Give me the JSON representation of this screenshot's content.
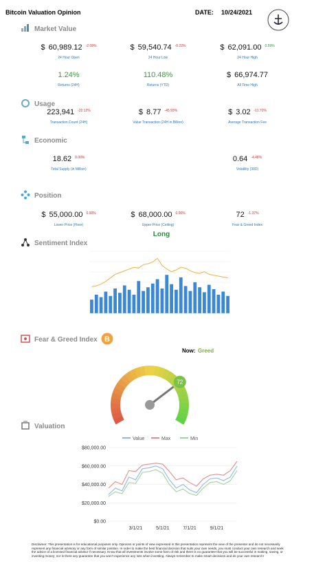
{
  "header": {
    "title": "Bitcoin Valuation Opinion",
    "date_label": "DATE:",
    "date": "10/24/2021"
  },
  "market_value": {
    "title": "Market Value",
    "rows": [
      [
        {
          "currency": "$",
          "value": "60,989.12",
          "change": "-2.09%",
          "label": "24 Hour Open"
        },
        {
          "currency": "$",
          "value": "59,540.74",
          "change": "-0.22%",
          "label": "24 Hour Low"
        },
        {
          "currency": "$",
          "value": "62,091.00",
          "change": "0.59%",
          "label": "24 Hour High"
        }
      ],
      [
        {
          "value": "1.24%",
          "value_color": "#3f9a3f",
          "label": "Returns (24H)"
        },
        {
          "value": "110.48%",
          "value_color": "#3f9a3f",
          "label": "Returns (YTD)"
        },
        {
          "currency": "$",
          "value": "66,974.77",
          "label": "All Time High"
        }
      ]
    ]
  },
  "usage": {
    "title": "Usage",
    "rows": [
      [
        {
          "value": "223,941",
          "change": "-22.12%",
          "label": "Transaction Count (24H)"
        },
        {
          "currency": "$",
          "value": "8.77",
          "change": "-45.93%",
          "label": "Value Transaction (24H in Billion)"
        },
        {
          "currency": "$",
          "value": "3.02",
          "change": "-11.70%",
          "label": "Average Transaction Fee"
        }
      ]
    ]
  },
  "economic": {
    "title": "Economic",
    "rows": [
      [
        {
          "value": "18.62",
          "change": "0.00%",
          "label": "Total Supply (in Million)"
        },
        {
          "value": "0.64",
          "change": "-4.48%",
          "label": "Volatility (30D)"
        }
      ]
    ]
  },
  "position": {
    "title": "Position",
    "rows": [
      [
        {
          "currency": "$",
          "value": "55,000.00",
          "change": "0.00%",
          "label": "Lower Price (Floor)"
        },
        {
          "currency": "$",
          "value": "68,000.00",
          "change": "0.00%",
          "label": "Upper Price (Ceiling)"
        },
        {
          "value": "72",
          "change": "-1.37%",
          "label": "Fear & Greed Index"
        }
      ]
    ],
    "signal": "Long"
  },
  "sentiment": {
    "title": "Sentiment Index"
  },
  "fear_greed": {
    "title": "Fear & Greed Index",
    "now_label": "Now:",
    "status": "Greed"
  },
  "valuation": {
    "title": "Valuation"
  },
  "disclaimer": "Disclaimer: This presentation is for educational purposes only. Opinions or points of view expressed in this presentation represent the view of the presenter and do not necessarily represent any financial advisory or any form of similar position. In order to make the best financial decision that suits your own needs, you must conduct your own research and seek the advice of a licensed financial advisor if necessary. Know that all investments involve some form of risk and there is no guarantee that you will be successful in making, saving, or investing money; nor is there any guarantee that you won't experience any loss when investing. Always remember to make smart decisions and do your own research!",
  "chart_data": [
    {
      "type": "bar-line",
      "ylim": [
        0,
        100
      ],
      "y2lim": [
        0,
        70000
      ],
      "series": [
        {
          "color": "#3a87d6",
          "values": [
            22,
            30,
            26,
            35,
            28,
            40,
            33,
            45,
            38,
            30,
            52,
            36,
            42,
            48,
            55,
            40,
            62,
            47,
            38,
            58,
            44,
            36,
            50,
            42,
            34,
            46,
            39,
            30,
            35,
            28
          ]
        },
        {
          "color": "#f0b040",
          "axis": "y2",
          "values": [
            30000,
            31000,
            33000,
            36000,
            40000,
            44000,
            46000,
            48000,
            50000,
            52000,
            51000,
            55000,
            56000,
            58000,
            62000,
            54000,
            50000,
            47000,
            49000,
            52000,
            51000,
            48000,
            46000,
            45000,
            47000,
            44000,
            43000,
            42000,
            41000,
            40000
          ]
        }
      ]
    },
    {
      "type": "gauge",
      "value": 72,
      "ylim": [
        0,
        100
      ]
    },
    {
      "type": "line",
      "categories": [
        null,
        null,
        null,
        null,
        "3/1/21",
        null,
        null,
        null,
        "5/1/21",
        null,
        null,
        null,
        "7/1/21",
        null,
        null,
        null,
        "9/1/21",
        null,
        null,
        null
      ],
      "ylim": [
        0,
        80000
      ],
      "yticks": [
        {
          "value": 0,
          "label": "$0.00"
        },
        {
          "value": 20000,
          "label": "$20,000.00"
        },
        {
          "value": 40000,
          "label": "$40,000.00"
        },
        {
          "value": 60000,
          "label": "$60,000.00"
        },
        {
          "value": 80000,
          "label": "$80,000.00"
        }
      ],
      "series": [
        {
          "name": "Value",
          "color": "#8fb6ea",
          "values": [
            29000,
            36000,
            33000,
            48000,
            45000,
            57000,
            58000,
            60000,
            57000,
            45000,
            36000,
            40000,
            34000,
            31000,
            40000,
            46000,
            47000,
            44000,
            48000,
            60000
          ]
        },
        {
          "name": "Max",
          "color": "#e88a8a",
          "values": [
            36000,
            43000,
            40000,
            55000,
            54000,
            61000,
            62000,
            63000,
            62000,
            54000,
            45000,
            47000,
            42000,
            38000,
            46000,
            50000,
            51000,
            50000,
            55000,
            65000
          ]
        },
        {
          "name": "Min",
          "color": "#9fd49f",
          "values": [
            27000,
            32000,
            30000,
            42000,
            41000,
            53000,
            54000,
            56000,
            52000,
            40000,
            32000,
            35000,
            30000,
            28000,
            36000,
            42000,
            43000,
            40000,
            44000,
            55000
          ]
        }
      ]
    }
  ]
}
